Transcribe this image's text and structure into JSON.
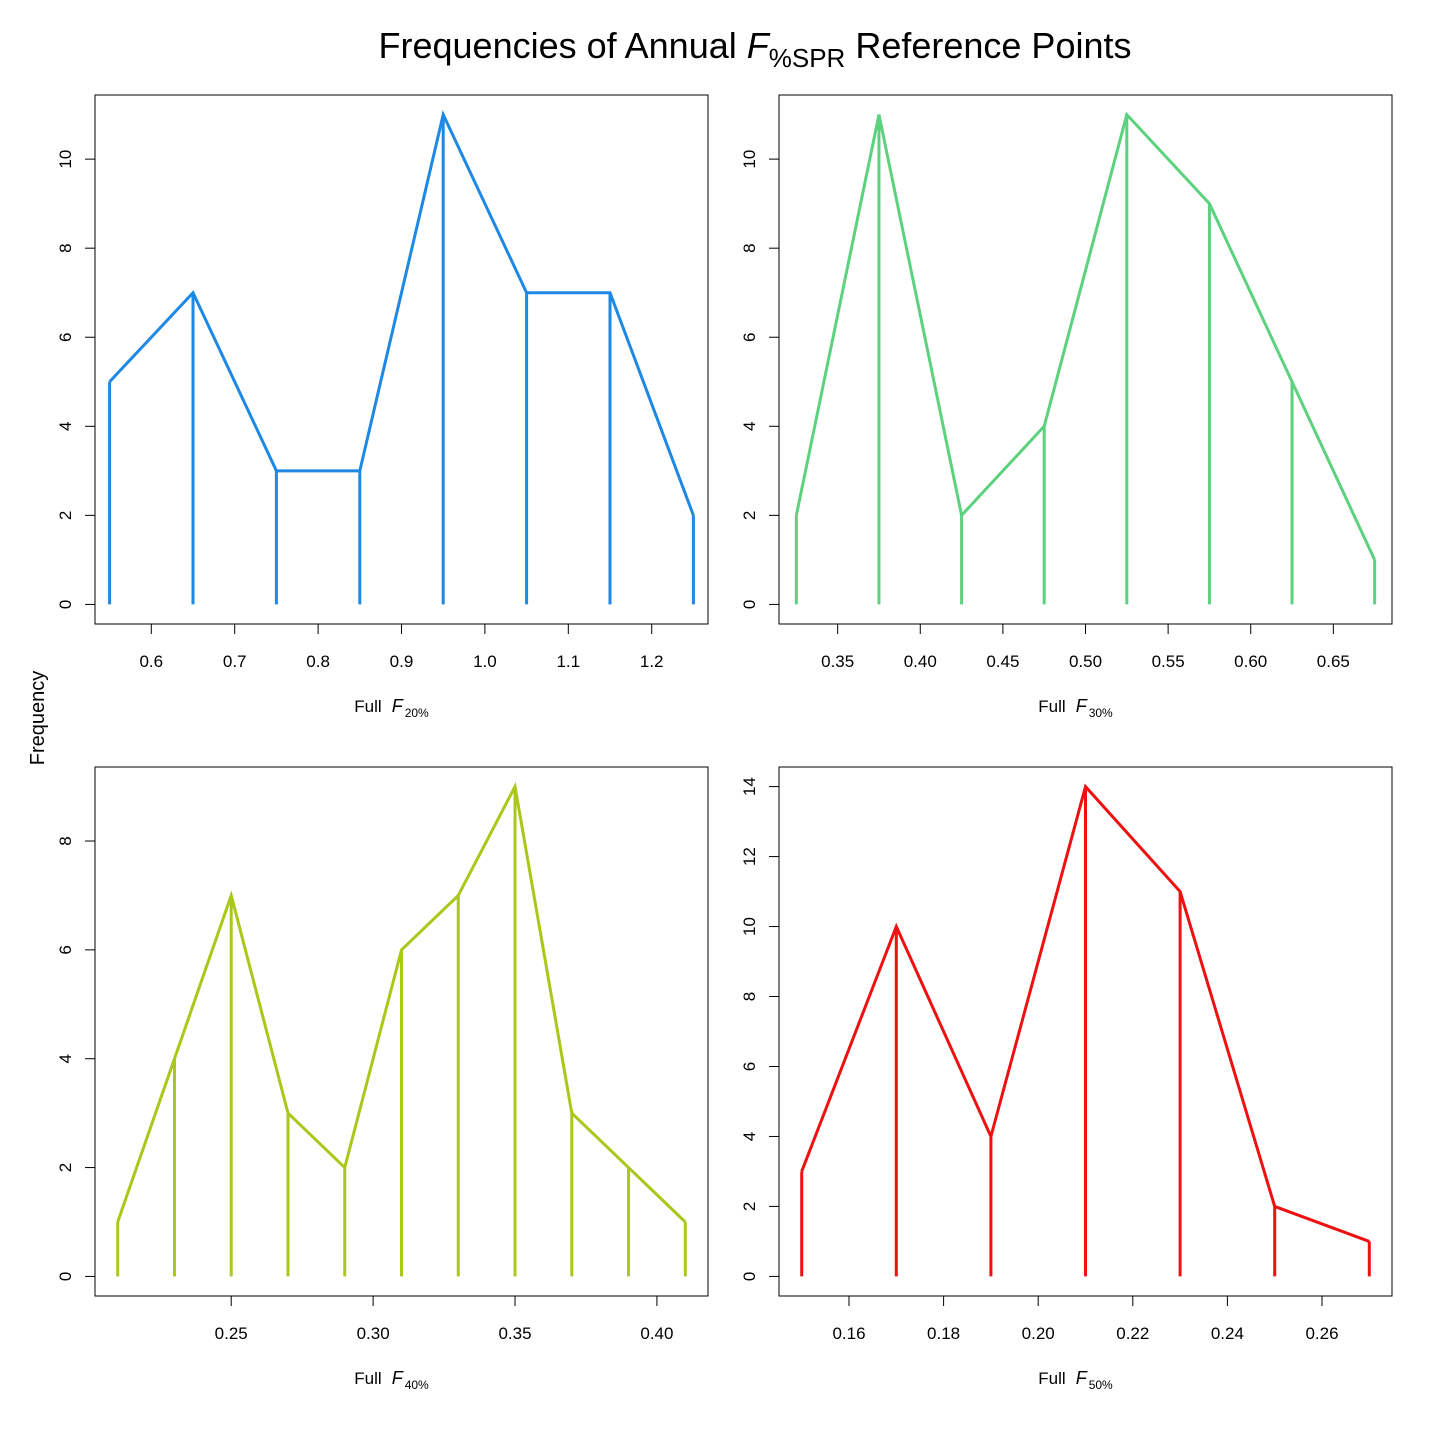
{
  "figure": {
    "title_main": "Frequencies of Annual ",
    "title_italic": "F",
    "title_sub": "%SPR",
    "title_rest": " Reference Points",
    "ylabel": "Frequency"
  },
  "chart_data": [
    {
      "type": "line",
      "color": "#1E88E5",
      "xlabel_prefix": "Full",
      "xlabel_italic": "F",
      "xlabel_sub": "20%",
      "xlim": [
        0.5325,
        1.2675
      ],
      "ylim": [
        -0.44,
        11.44
      ],
      "xticks": [
        0.6,
        0.7,
        0.8,
        0.9,
        1.0,
        1.1,
        1.2
      ],
      "xtick_labels": [
        "0.6",
        "0.7",
        "0.8",
        "0.9",
        "1.0",
        "1.1",
        "1.2"
      ],
      "yticks": [
        0,
        2,
        4,
        6,
        8,
        10
      ],
      "ytick_labels": [
        "0",
        "2",
        "4",
        "6",
        "8",
        "10"
      ],
      "x": [
        0.55,
        0.65,
        0.75,
        0.85,
        0.95,
        1.05,
        1.15,
        1.25
      ],
      "y": [
        5,
        7,
        3,
        3,
        11,
        7,
        7,
        2
      ]
    },
    {
      "type": "line",
      "color": "#5CD17E",
      "xlabel_prefix": "Full",
      "xlabel_italic": "F",
      "xlabel_sub": "30%",
      "xlim": [
        0.3145,
        0.6855
      ],
      "ylim": [
        -0.44,
        11.44
      ],
      "xticks": [
        0.35,
        0.4,
        0.45,
        0.5,
        0.55,
        0.6,
        0.65
      ],
      "xtick_labels": [
        "0.35",
        "0.40",
        "0.45",
        "0.50",
        "0.55",
        "0.60",
        "0.65"
      ],
      "yticks": [
        0,
        2,
        4,
        6,
        8,
        10
      ],
      "ytick_labels": [
        "0",
        "2",
        "4",
        "6",
        "8",
        "10"
      ],
      "x": [
        0.325,
        0.375,
        0.425,
        0.475,
        0.525,
        0.575,
        0.625,
        0.675
      ],
      "y": [
        2,
        11,
        2,
        4,
        11,
        9,
        5,
        1
      ]
    },
    {
      "type": "line",
      "color": "#A8C81A",
      "xlabel_prefix": "Full",
      "xlabel_italic": "F",
      "xlabel_sub": "40%",
      "xlim": [
        0.202,
        0.418
      ],
      "ylim": [
        -0.36,
        9.36
      ],
      "xticks": [
        0.25,
        0.3,
        0.35,
        0.4
      ],
      "xtick_labels": [
        "0.25",
        "0.30",
        "0.35",
        "0.40"
      ],
      "yticks": [
        0,
        2,
        4,
        6,
        8
      ],
      "ytick_labels": [
        "0",
        "2",
        "4",
        "6",
        "8"
      ],
      "x": [
        0.21,
        0.23,
        0.25,
        0.27,
        0.29,
        0.31,
        0.33,
        0.35,
        0.37,
        0.39,
        0.41
      ],
      "y": [
        1,
        4,
        7,
        3,
        2,
        6,
        7,
        9,
        3,
        2,
        1
      ]
    },
    {
      "type": "line",
      "color": "#EE1111",
      "xlabel_prefix": "Full",
      "xlabel_italic": "F",
      "xlabel_sub": "50%",
      "xlim": [
        0.1452,
        0.2748
      ],
      "ylim": [
        -0.56,
        14.56
      ],
      "xticks": [
        0.16,
        0.18,
        0.2,
        0.22,
        0.24,
        0.26
      ],
      "xtick_labels": [
        "0.16",
        "0.18",
        "0.20",
        "0.22",
        "0.24",
        "0.26"
      ],
      "yticks": [
        0,
        2,
        4,
        6,
        8,
        10,
        12,
        14
      ],
      "ytick_labels": [
        "0",
        "2",
        "4",
        "6",
        "8",
        "10",
        "12",
        "14"
      ],
      "x": [
        0.15,
        0.17,
        0.19,
        0.21,
        0.23,
        0.25,
        0.27
      ],
      "y": [
        3,
        10,
        4,
        14,
        11,
        2,
        1
      ]
    }
  ]
}
